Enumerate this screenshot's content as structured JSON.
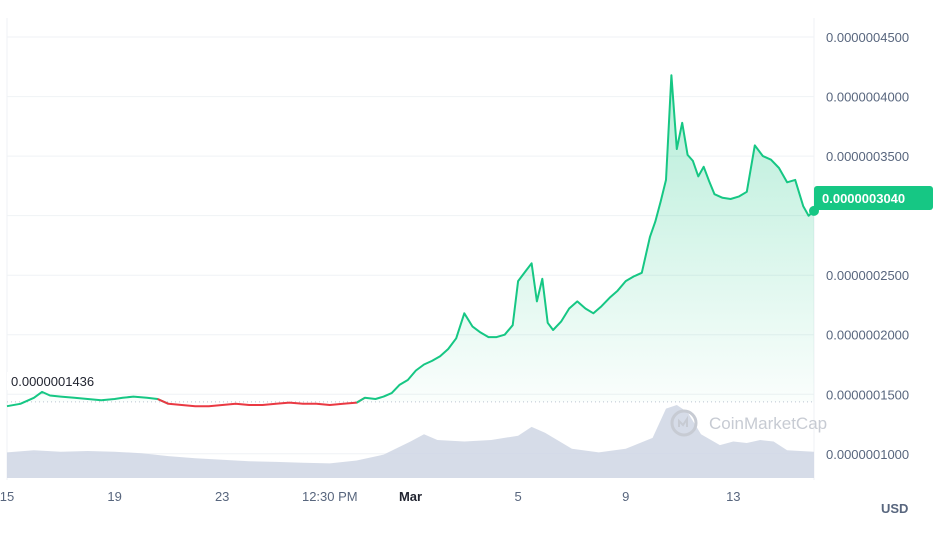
{
  "chart_data": {
    "type": "line",
    "yaxis": {
      "ticks": [
        "0.0000004500",
        "0.0000004000",
        "0.0000003500",
        "0.0000002500",
        "0.0000002000",
        "0.0000001500",
        "0.0000001000"
      ],
      "tick_values": [
        4.5e-07,
        4e-07,
        3.5e-07,
        2.5e-07,
        2e-07,
        1.5e-07,
        1e-07
      ],
      "range": [
        7.8e-08,
        4.66e-07
      ],
      "unit": "USD"
    },
    "xaxis": {
      "ticks": [
        {
          "label": "15",
          "x": 0
        },
        {
          "label": "19",
          "x": 4
        },
        {
          "label": "23",
          "x": 8
        },
        {
          "label": "12:30 PM",
          "x": 12
        },
        {
          "label": "Mar",
          "x": 15,
          "bold": true
        },
        {
          "label": "5",
          "x": 19
        },
        {
          "label": "9",
          "x": 23
        },
        {
          "label": "13",
          "x": 27
        }
      ],
      "range": [
        0,
        30
      ]
    },
    "current_price": "0.0000003040",
    "current_value": 3.04e-07,
    "start_price": "0.0000001436",
    "start_value": 1.436e-07,
    "watermark": "CoinMarketCap",
    "grid": true,
    "colors": {
      "up_line": "#16c784",
      "down_line": "#ea3943",
      "area_top": "#16c784",
      "volume": "#cfd6e4",
      "grid": "#eff2f5",
      "baseline": "#bcc4d1"
    },
    "price_series": [
      [
        0.0,
        1.4
      ],
      [
        0.5,
        1.42
      ],
      [
        1.0,
        1.47
      ],
      [
        1.3,
        1.52
      ],
      [
        1.6,
        1.49
      ],
      [
        2.0,
        1.48
      ],
      [
        2.5,
        1.47
      ],
      [
        3.0,
        1.46
      ],
      [
        3.5,
        1.45
      ],
      [
        4.0,
        1.46
      ],
      [
        4.3,
        1.47
      ],
      [
        4.7,
        1.48
      ],
      [
        5.2,
        1.47
      ],
      [
        5.6,
        1.46
      ],
      [
        6.0,
        1.42
      ],
      [
        6.5,
        1.41
      ],
      [
        7.0,
        1.4
      ],
      [
        7.5,
        1.4
      ],
      [
        8.0,
        1.41
      ],
      [
        8.5,
        1.42
      ],
      [
        9.0,
        1.41
      ],
      [
        9.5,
        1.41
      ],
      [
        10.0,
        1.42
      ],
      [
        10.5,
        1.43
      ],
      [
        11.0,
        1.42
      ],
      [
        11.5,
        1.42
      ],
      [
        12.0,
        1.41
      ],
      [
        12.5,
        1.42
      ],
      [
        13.0,
        1.43
      ],
      [
        13.3,
        1.47
      ],
      [
        13.7,
        1.46
      ],
      [
        14.0,
        1.48
      ],
      [
        14.3,
        1.51
      ],
      [
        14.6,
        1.58
      ],
      [
        14.9,
        1.62
      ],
      [
        15.2,
        1.7
      ],
      [
        15.5,
        1.75
      ],
      [
        15.8,
        1.78
      ],
      [
        16.1,
        1.82
      ],
      [
        16.4,
        1.88
      ],
      [
        16.7,
        1.97
      ],
      [
        17.0,
        2.18
      ],
      [
        17.3,
        2.07
      ],
      [
        17.6,
        2.02
      ],
      [
        17.9,
        1.98
      ],
      [
        18.2,
        1.98
      ],
      [
        18.5,
        2.0
      ],
      [
        18.8,
        2.08
      ],
      [
        19.0,
        2.45
      ],
      [
        19.3,
        2.54
      ],
      [
        19.5,
        2.6
      ],
      [
        19.7,
        2.28
      ],
      [
        19.9,
        2.47
      ],
      [
        20.1,
        2.1
      ],
      [
        20.3,
        2.04
      ],
      [
        20.6,
        2.11
      ],
      [
        20.9,
        2.22
      ],
      [
        21.2,
        2.28
      ],
      [
        21.5,
        2.22
      ],
      [
        21.8,
        2.18
      ],
      [
        22.1,
        2.24
      ],
      [
        22.4,
        2.31
      ],
      [
        22.7,
        2.37
      ],
      [
        23.0,
        2.45
      ],
      [
        23.3,
        2.49
      ],
      [
        23.6,
        2.52
      ],
      [
        23.9,
        2.82
      ],
      [
        24.1,
        2.95
      ],
      [
        24.3,
        3.12
      ],
      [
        24.5,
        3.3
      ],
      [
        24.7,
        4.18
      ],
      [
        24.9,
        3.56
      ],
      [
        25.1,
        3.78
      ],
      [
        25.3,
        3.51
      ],
      [
        25.5,
        3.46
      ],
      [
        25.7,
        3.33
      ],
      [
        25.9,
        3.41
      ],
      [
        26.1,
        3.29
      ],
      [
        26.3,
        3.18
      ],
      [
        26.6,
        3.15
      ],
      [
        26.9,
        3.14
      ],
      [
        27.2,
        3.16
      ],
      [
        27.5,
        3.2
      ],
      [
        27.8,
        3.59
      ],
      [
        28.1,
        3.5
      ],
      [
        28.4,
        3.47
      ],
      [
        28.7,
        3.4
      ],
      [
        29.0,
        3.28
      ],
      [
        29.3,
        3.3
      ],
      [
        29.6,
        3.08
      ],
      [
        29.8,
        3.0
      ],
      [
        30.0,
        3.04
      ]
    ],
    "down_segments": [
      [
        5.8,
        13.1
      ]
    ],
    "volume_series": [
      [
        0.0,
        0.35
      ],
      [
        1.0,
        0.38
      ],
      [
        2.0,
        0.36
      ],
      [
        3.0,
        0.37
      ],
      [
        4.0,
        0.36
      ],
      [
        5.0,
        0.34
      ],
      [
        6.0,
        0.3
      ],
      [
        7.0,
        0.27
      ],
      [
        8.0,
        0.25
      ],
      [
        9.0,
        0.23
      ],
      [
        10.0,
        0.22
      ],
      [
        11.0,
        0.21
      ],
      [
        12.0,
        0.2
      ],
      [
        13.0,
        0.24
      ],
      [
        14.0,
        0.32
      ],
      [
        15.0,
        0.5
      ],
      [
        15.5,
        0.6
      ],
      [
        16.0,
        0.52
      ],
      [
        17.0,
        0.5
      ],
      [
        18.0,
        0.52
      ],
      [
        19.0,
        0.58
      ],
      [
        19.5,
        0.7
      ],
      [
        20.0,
        0.62
      ],
      [
        21.0,
        0.4
      ],
      [
        22.0,
        0.35
      ],
      [
        23.0,
        0.4
      ],
      [
        24.0,
        0.55
      ],
      [
        24.5,
        0.95
      ],
      [
        24.9,
        1.0
      ],
      [
        25.3,
        0.9
      ],
      [
        25.8,
        0.6
      ],
      [
        26.5,
        0.45
      ],
      [
        27.0,
        0.5
      ],
      [
        27.5,
        0.48
      ],
      [
        28.0,
        0.52
      ],
      [
        28.5,
        0.5
      ],
      [
        29.0,
        0.38
      ],
      [
        29.5,
        0.37
      ],
      [
        30.0,
        0.36
      ]
    ]
  }
}
